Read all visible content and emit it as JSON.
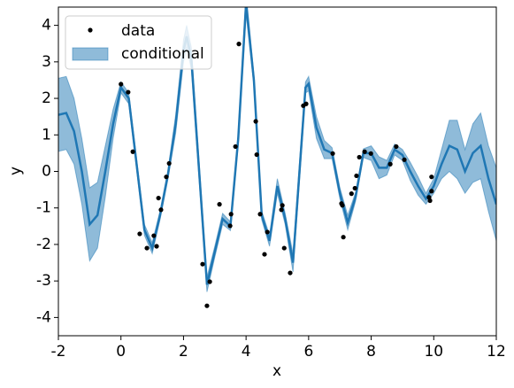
{
  "chart_data": {
    "type": "gp",
    "xlabel": "x",
    "ylabel": "y",
    "xlim": [
      -2,
      12
    ],
    "xticks": [
      -2,
      0,
      2,
      4,
      6,
      8,
      10,
      12
    ],
    "ylim": [
      -4.5,
      4.5
    ],
    "yticks": [
      -4,
      -3,
      -2,
      -1,
      0,
      1,
      2,
      3,
      4
    ],
    "legend": "upper left",
    "points": {
      "name": "data",
      "color": "#000000",
      "x": [
        0.0,
        0.23,
        0.38,
        0.6,
        0.83,
        1.05,
        1.14,
        1.2,
        1.28,
        1.45,
        1.54,
        2.61,
        2.75,
        2.84,
        3.15,
        3.49,
        3.52,
        3.66,
        3.77,
        4.31,
        4.34,
        4.45,
        4.59,
        4.68,
        5.13,
        5.16,
        5.22,
        5.41,
        5.83,
        5.92,
        6.77,
        7.05,
        7.08,
        7.11,
        7.37,
        7.48,
        7.53,
        7.62,
        7.79,
        7.99,
        8.61,
        8.8,
        9.06,
        9.85,
        9.88,
        9.93,
        9.93
      ],
      "values": [
        2.39,
        2.17,
        0.54,
        -1.71,
        -2.1,
        -1.76,
        -2.05,
        -0.73,
        -1.05,
        -0.15,
        0.22,
        -2.54,
        -3.68,
        -3.02,
        -0.9,
        -1.49,
        -1.17,
        0.68,
        3.49,
        1.37,
        0.46,
        -1.17,
        -2.27,
        -1.66,
        -1.05,
        -0.93,
        -2.1,
        -2.78,
        1.8,
        1.85,
        0.49,
        -0.88,
        -0.93,
        -1.8,
        -0.61,
        -0.46,
        -0.12,
        0.39,
        0.54,
        0.49,
        0.2,
        0.68,
        0.32,
        -0.71,
        -0.8,
        -0.15,
        -0.54
      ]
    },
    "x": [
      -2,
      -1.75,
      -1.5,
      -1.25,
      -1,
      -0.75,
      -0.5,
      -0.25,
      0,
      0.25,
      0.5,
      0.75,
      1,
      1.25,
      1.5,
      1.75,
      2,
      2.1,
      2.25,
      2.5,
      2.75,
      3,
      3.25,
      3.5,
      3.75,
      4,
      4.25,
      4.5,
      4.75,
      5,
      5.25,
      5.5,
      5.75,
      5.9,
      6,
      6.25,
      6.5,
      6.75,
      7,
      7.25,
      7.5,
      7.75,
      8,
      8.25,
      8.5,
      8.75,
      9,
      9.25,
      9.5,
      9.75,
      10,
      10.25,
      10.5,
      10.75,
      11,
      11.25,
      11.5,
      11.75,
      12
    ],
    "mean": {
      "color": "#1f77b4",
      "values": [
        1.55,
        1.6,
        1.1,
        0.0,
        -1.45,
        -1.2,
        0.0,
        1.3,
        2.3,
        2.0,
        0.2,
        -1.6,
        -2.1,
        -1.2,
        -0.1,
        1.3,
        3.3,
        3.7,
        3.1,
        0.0,
        -3.1,
        -2.2,
        -1.3,
        -1.5,
        0.9,
        4.6,
        2.5,
        -1.2,
        -1.9,
        -0.4,
        -1.3,
        -2.5,
        0.5,
        2.3,
        2.4,
        1.2,
        0.6,
        0.5,
        -0.6,
        -1.4,
        -0.7,
        0.5,
        0.5,
        0.1,
        0.1,
        0.6,
        0.45,
        0.0,
        -0.4,
        -0.75,
        -0.4,
        0.2,
        0.7,
        0.6,
        0.0,
        0.5,
        0.7,
        -0.2,
        -0.9
      ]
    },
    "band": {
      "name": "conditional",
      "color": "#1f77b4",
      "lower": [
        0.55,
        0.6,
        0.2,
        -0.9,
        -2.45,
        -2.1,
        -0.7,
        0.9,
        2.15,
        1.85,
        0.05,
        -1.75,
        -2.25,
        -1.32,
        -0.22,
        1.05,
        3.0,
        3.4,
        2.8,
        -0.25,
        -3.3,
        -2.35,
        -1.45,
        -1.62,
        0.75,
        4.3,
        2.35,
        -1.32,
        -2.05,
        -0.6,
        -1.45,
        -2.75,
        0.25,
        2.15,
        2.2,
        0.9,
        0.35,
        0.35,
        -0.75,
        -1.6,
        -0.82,
        0.38,
        0.3,
        -0.2,
        -0.1,
        0.45,
        0.3,
        -0.25,
        -0.65,
        -0.9,
        -0.6,
        -0.2,
        0.0,
        -0.2,
        -0.6,
        -0.3,
        -0.2,
        -1.1,
        -1.9
      ],
      "upper": [
        2.55,
        2.6,
        2.0,
        0.9,
        -0.45,
        -0.3,
        0.7,
        1.7,
        2.45,
        2.15,
        0.35,
        -1.45,
        -1.95,
        -1.08,
        0.02,
        1.55,
        3.6,
        4.0,
        3.4,
        0.25,
        -2.9,
        -2.05,
        -1.15,
        -1.38,
        1.05,
        4.9,
        2.65,
        -1.08,
        -1.75,
        -0.2,
        -1.15,
        -2.25,
        0.75,
        2.45,
        2.6,
        1.5,
        0.85,
        0.65,
        -0.45,
        -1.2,
        -0.58,
        0.62,
        0.7,
        0.4,
        0.3,
        0.75,
        0.6,
        0.25,
        -0.15,
        -0.6,
        -0.2,
        0.6,
        1.4,
        1.4,
        0.6,
        1.3,
        1.6,
        0.7,
        0.1
      ]
    }
  }
}
